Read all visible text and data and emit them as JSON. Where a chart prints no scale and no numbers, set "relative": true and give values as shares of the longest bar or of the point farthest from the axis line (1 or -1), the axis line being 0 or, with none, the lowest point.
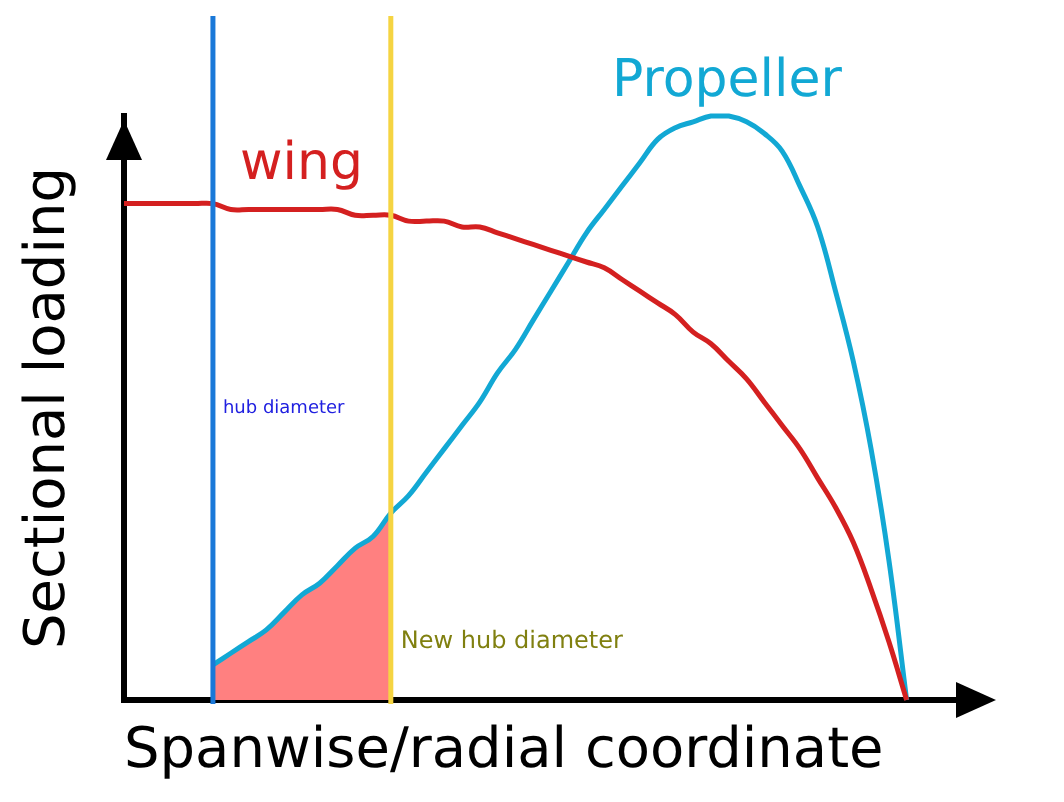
{
  "chart_data": {
    "type": "line",
    "relative": true,
    "xlabel": "Spanwise/radial coordinate",
    "ylabel": "Sectional loading",
    "categories": [
      null,
      null,
      null,
      null,
      null,
      null,
      null,
      null,
      null,
      null,
      null,
      null,
      null,
      null,
      null,
      null,
      null,
      null,
      null,
      null,
      null,
      null,
      null,
      null,
      null,
      null,
      null,
      null,
      null,
      null,
      null,
      null,
      null,
      null,
      null,
      null,
      null,
      null,
      null,
      null,
      null,
      null,
      null,
      null,
      null,
      null,
      null,
      null
    ],
    "series": [
      {
        "type": "area",
        "color": "#ff8080",
        "values": [
          null,
          null,
          null,
          null,
          null,
          0.06,
          0.08,
          0.1,
          0.12,
          0.15,
          0.18,
          0.2,
          0.23,
          0.26,
          0.28,
          0.32,
          null,
          null,
          null,
          null,
          null,
          null,
          null,
          null,
          null,
          null,
          null,
          null,
          null,
          null,
          null,
          null,
          null,
          null,
          null,
          null,
          null,
          null,
          null,
          null,
          null,
          null,
          null,
          null,
          null,
          null,
          null,
          null
        ]
      },
      {
        "name": "wing",
        "color": "#d42020",
        "values": [
          0.85,
          0.85,
          0.85,
          0.85,
          0.85,
          0.85,
          0.84,
          0.84,
          0.84,
          0.84,
          0.84,
          0.84,
          0.84,
          0.83,
          0.83,
          0.83,
          0.82,
          0.82,
          0.82,
          0.81,
          0.81,
          0.8,
          0.79,
          0.78,
          0.77,
          0.76,
          0.75,
          0.74,
          0.72,
          0.7,
          0.68,
          0.66,
          0.63,
          0.61,
          0.58,
          0.55,
          0.51,
          0.47,
          0.43,
          0.38,
          0.33,
          0.27,
          0.19,
          0.1,
          0,
          null,
          null,
          null
        ]
      },
      {
        "name": "Propeller",
        "color": "#12a8d4",
        "values": [
          null,
          null,
          null,
          null,
          null,
          0.06,
          0.08,
          0.1,
          0.12,
          0.15,
          0.18,
          0.2,
          0.23,
          0.26,
          0.28,
          0.32,
          0.35,
          0.39,
          0.43,
          0.47,
          0.51,
          0.56,
          0.6,
          0.65,
          0.7,
          0.75,
          0.8,
          0.84,
          0.88,
          0.92,
          0.96,
          0.98,
          0.99,
          1,
          1,
          0.99,
          0.97,
          0.94,
          0.88,
          0.81,
          0.7,
          0.58,
          0.43,
          0.24,
          0,
          null,
          null,
          null
        ]
      }
    ],
    "annotations": [
      "hub diameter",
      "New hub diameter"
    ]
  }
}
